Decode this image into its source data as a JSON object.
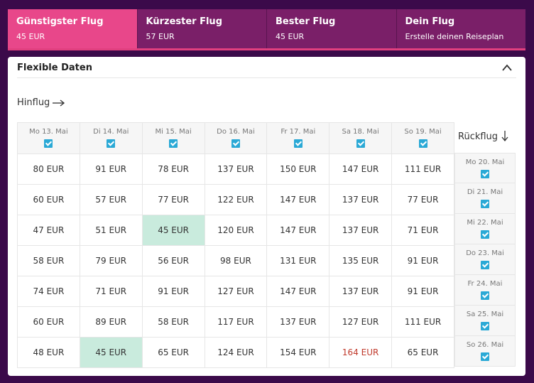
{
  "tabs": [
    {
      "title": "Günstigster Flug",
      "sub": "45 EUR"
    },
    {
      "title": "Kürzester Flug",
      "sub": "57 EUR"
    },
    {
      "title": "Bester Flug",
      "sub": "45 EUR"
    },
    {
      "title": "Dein Flug",
      "sub": "Erstelle deinen Reiseplan"
    }
  ],
  "active_tab": 0,
  "panel": {
    "title": "Flexible Daten",
    "chevron_icon": "chevron-up-icon"
  },
  "outbound_label": "Hinflug",
  "return_label": "Rückflug",
  "outbound_dates": [
    "Mo 13. Mai",
    "Di 14. Mai",
    "Mi 15. Mai",
    "Do 16. Mai",
    "Fr 17. Mai",
    "Sa 18. Mai",
    "So 19. Mai"
  ],
  "return_dates": [
    "Mo 20. Mai",
    "Di 21. Mai",
    "Mi 22. Mai",
    "Do 23. Mai",
    "Fr 24. Mai",
    "Sa 25. Mai",
    "So 26. Mai"
  ],
  "prices": [
    [
      "80 EUR",
      "91 EUR",
      "78 EUR",
      "137 EUR",
      "150 EUR",
      "147 EUR",
      "111 EUR"
    ],
    [
      "60 EUR",
      "57 EUR",
      "77 EUR",
      "122 EUR",
      "147 EUR",
      "137 EUR",
      "77 EUR"
    ],
    [
      "47 EUR",
      "51 EUR",
      "45 EUR",
      "120 EUR",
      "147 EUR",
      "137 EUR",
      "71 EUR"
    ],
    [
      "58 EUR",
      "79 EUR",
      "56 EUR",
      "98 EUR",
      "131 EUR",
      "135 EUR",
      "91 EUR"
    ],
    [
      "74 EUR",
      "71 EUR",
      "91 EUR",
      "127 EUR",
      "147 EUR",
      "137 EUR",
      "91 EUR"
    ],
    [
      "60 EUR",
      "89 EUR",
      "58 EUR",
      "117 EUR",
      "137 EUR",
      "127 EUR",
      "111 EUR"
    ],
    [
      "48 EUR",
      "45 EUR",
      "65 EUR",
      "124 EUR",
      "154 EUR",
      "164 EUR",
      "65 EUR"
    ]
  ],
  "cheapest_cells": [
    [
      2,
      2
    ],
    [
      6,
      1
    ]
  ],
  "expensive_cells": [
    [
      6,
      5
    ]
  ],
  "colors": {
    "active_tab": "#e8478a",
    "tab": "#7a1f68",
    "cheapest": "#c9ebdd",
    "expensive": "#c0392b",
    "checkbox": "#2aa9d6"
  }
}
